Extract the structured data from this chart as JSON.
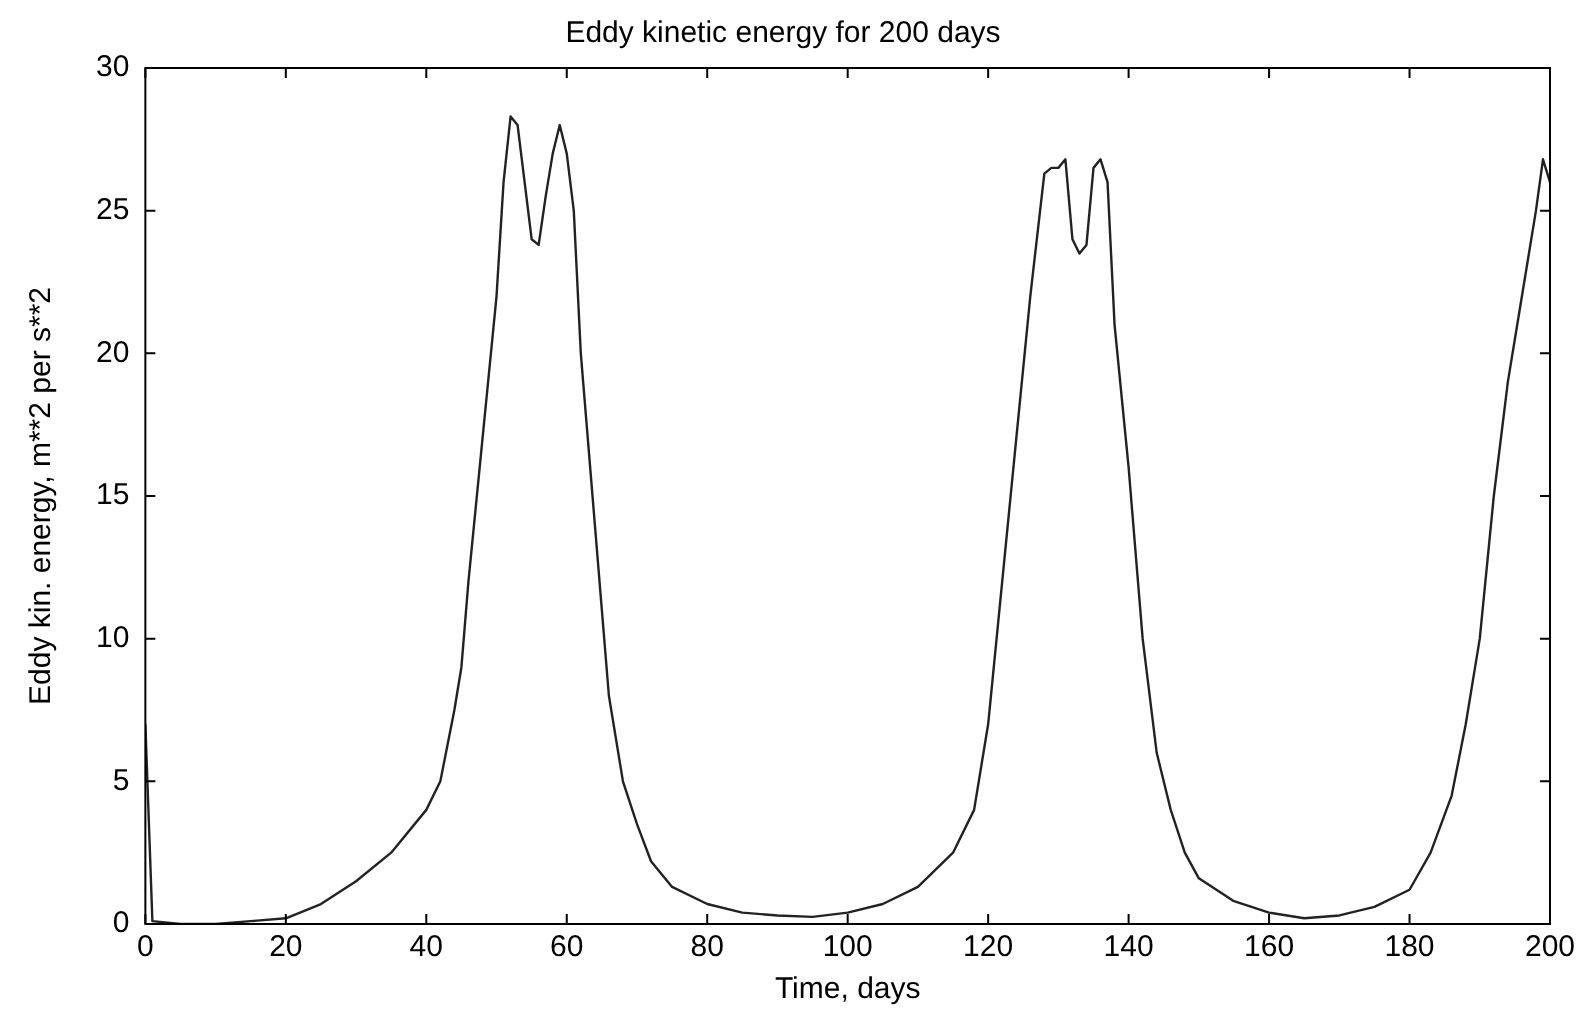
{
  "chart_data": {
    "type": "line",
    "title": "Eddy kinetic energy for 200 days",
    "xlabel": "Time, days",
    "ylabel": "Eddy kin. energy, m**2 per s**2",
    "xlim": [
      0,
      200
    ],
    "ylim": [
      0,
      30
    ],
    "xticks": [
      0,
      20,
      40,
      60,
      80,
      100,
      120,
      140,
      160,
      180,
      200
    ],
    "yticks": [
      0,
      5,
      10,
      15,
      20,
      25,
      30
    ],
    "grid": false,
    "legend": false,
    "marker": "none",
    "line_style": "solid",
    "series": [
      {
        "color": "#222222",
        "x": [
          0,
          1,
          5,
          10,
          15,
          20,
          25,
          30,
          35,
          40,
          42,
          44,
          45,
          46,
          48,
          50,
          51,
          52,
          53,
          54,
          55,
          56,
          57,
          58,
          59,
          60,
          61,
          62,
          64,
          66,
          68,
          70,
          72,
          75,
          80,
          85,
          90,
          95,
          100,
          105,
          110,
          115,
          118,
          120,
          122,
          124,
          126,
          128,
          129,
          130,
          131,
          132,
          133,
          134,
          135,
          136,
          137,
          138,
          140,
          142,
          144,
          146,
          148,
          150,
          155,
          160,
          165,
          170,
          175,
          180,
          183,
          186,
          188,
          190,
          192,
          194,
          196,
          198,
          199,
          200
        ],
        "values": [
          7,
          0.1,
          0,
          0,
          0.1,
          0.2,
          0.7,
          1.5,
          2.5,
          4,
          5,
          7.5,
          9,
          12,
          17,
          22,
          26,
          28.3,
          28,
          26,
          24,
          23.8,
          25.5,
          27,
          28,
          27,
          25,
          20,
          14,
          8,
          5,
          3.5,
          2.2,
          1.3,
          0.7,
          0.4,
          0.3,
          0.25,
          0.4,
          0.7,
          1.3,
          2.5,
          4,
          7,
          12,
          17,
          22,
          26.3,
          26.5,
          26.5,
          26.8,
          24,
          23.5,
          23.8,
          26.5,
          26.8,
          26,
          21,
          16,
          10,
          6,
          4,
          2.5,
          1.6,
          0.8,
          0.4,
          0.2,
          0.3,
          0.6,
          1.2,
          2.5,
          4.5,
          7,
          10,
          15,
          19,
          22,
          25,
          26.8,
          26
        ]
      }
    ]
  }
}
